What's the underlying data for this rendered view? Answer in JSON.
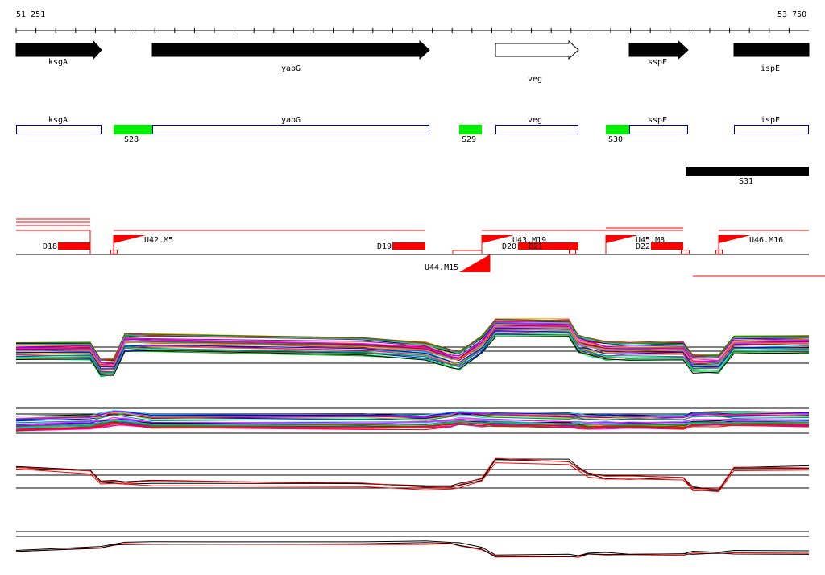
{
  "coords": {
    "start": "51 251",
    "end": "53 750"
  },
  "genes": [
    {
      "name": "ksgA",
      "dir": "right",
      "filled": true
    },
    {
      "name": "yabG",
      "dir": "right",
      "filled": true
    },
    {
      "name": "veg",
      "dir": "right",
      "filled": false
    },
    {
      "name": "sspF",
      "dir": "right",
      "filled": true
    },
    {
      "name": "ispE",
      "dir": "right",
      "filled": true
    }
  ],
  "gene_boxes": [
    {
      "name": "ksgA"
    },
    {
      "name": "yabG"
    },
    {
      "name": "veg"
    },
    {
      "name": "sspF"
    },
    {
      "name": "ispE"
    }
  ],
  "sites": [
    {
      "name": "S28",
      "color": "#00ee00"
    },
    {
      "name": "S29",
      "color": "#00ee00"
    },
    {
      "name": "S30",
      "color": "#00ee00"
    },
    {
      "name": "S31",
      "color": "#000000"
    }
  ],
  "segments": [
    {
      "name": "D18"
    },
    {
      "name": "D19"
    },
    {
      "name": "D20"
    },
    {
      "name": "D21"
    },
    {
      "name": "D22"
    }
  ],
  "upshifts": [
    {
      "name": "U42.M5"
    },
    {
      "name": "U43.M19"
    },
    {
      "name": "U44.M15"
    },
    {
      "name": "U45.M8"
    },
    {
      "name": "U46.M16"
    }
  ],
  "colors": {
    "feature": "#ff0000",
    "box_outline": "#0000aa",
    "site": "#00ee00"
  }
}
